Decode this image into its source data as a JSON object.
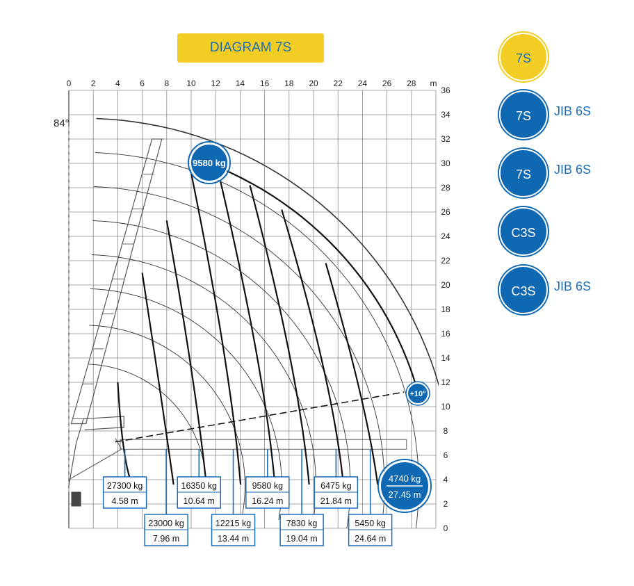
{
  "title": "DIAGRAM 7S",
  "menu": [
    {
      "circle": "7S",
      "label": "",
      "active": true
    },
    {
      "circle": "7S",
      "label": "JIB 6S",
      "active": false
    },
    {
      "circle": "7S",
      "label": "JIB 6S",
      "active": false
    },
    {
      "circle": "C3S",
      "label": "",
      "active": false
    },
    {
      "circle": "C3S",
      "label": "JIB 6S",
      "active": false
    }
  ],
  "chart_data": {
    "type": "load-chart",
    "x_unit": "m",
    "x_ticks": [
      0,
      2,
      4,
      6,
      8,
      10,
      12,
      14,
      16,
      18,
      20,
      22,
      24,
      26,
      28
    ],
    "y_ticks": [
      0,
      2,
      4,
      6,
      8,
      10,
      12,
      14,
      16,
      18,
      20,
      22,
      24,
      26,
      28,
      30,
      32,
      34,
      36
    ],
    "max_angle": "84°",
    "min_angle_badge": "+10°",
    "peak_load": "9580 kg",
    "max_reach": {
      "load": "4740 kg",
      "reach": "27.45 m",
      "x": 27.45
    },
    "loads": [
      {
        "load": "27300 kg",
        "reach": "4.58 m",
        "x": 4.58,
        "row": "top"
      },
      {
        "load": "23000 kg",
        "reach": "7.96 m",
        "x": 7.96,
        "row": "bottom"
      },
      {
        "load": "16350 kg",
        "reach": "10.64 m",
        "x": 10.64,
        "row": "top"
      },
      {
        "load": "12215 kg",
        "reach": "13.44 m",
        "x": 13.44,
        "row": "bottom"
      },
      {
        "load": "9580 kg",
        "reach": "16.24 m",
        "x": 16.24,
        "row": "top"
      },
      {
        "load": "7830 kg",
        "reach": "19.04 m",
        "x": 19.04,
        "row": "bottom"
      },
      {
        "load": "6475 kg",
        "reach": "21.84 m",
        "x": 21.84,
        "row": "top"
      },
      {
        "load": "5450 kg",
        "reach": "24.64 m",
        "x": 24.64,
        "row": "bottom"
      }
    ]
  }
}
